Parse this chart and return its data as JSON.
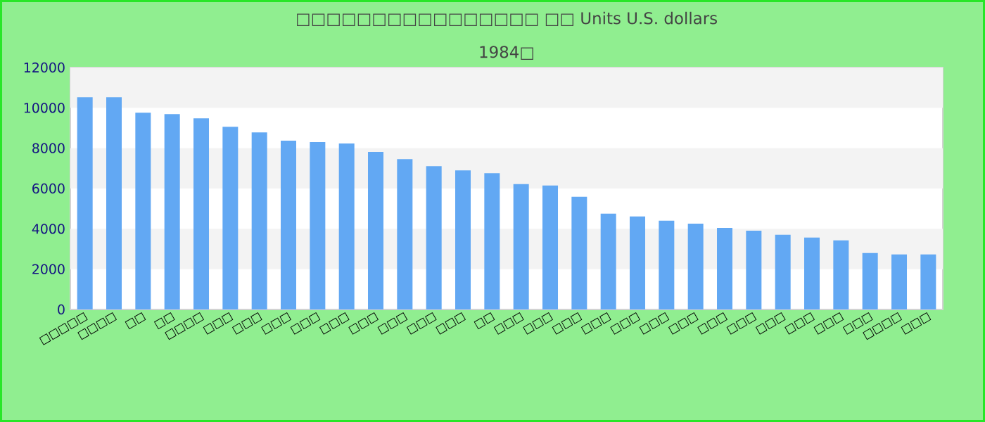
{
  "chart_data": {
    "type": "bar",
    "title": "□□□□□□□□□□□□□□□□ □□ Units U.S. dollars",
    "subtitle": "1984□",
    "categories": [
      "□□□□□",
      "□□□□",
      "□□",
      "□□",
      "□□□□",
      "□□□",
      "□□□",
      "□□□",
      "□□□",
      "□□□",
      "□□□",
      "□□□",
      "□□□",
      "□□□",
      "□□",
      "□□□",
      "□□□",
      "□□□",
      "□□□",
      "□□□",
      "□□□",
      "□□□",
      "□□□",
      "□□□",
      "□□□",
      "□□□",
      "□□□",
      "□□□",
      "□□□□",
      "□□□"
    ],
    "values": [
      10530,
      10530,
      9760,
      9690,
      9480,
      9060,
      8780,
      8370,
      8300,
      8230,
      7810,
      7460,
      7110,
      6900,
      6760,
      6220,
      6150,
      5590,
      4750,
      4610,
      4400,
      4260,
      4050,
      3910,
      3710,
      3570,
      3430,
      2800,
      2730,
      2730
    ],
    "color": "#62a8f3",
    "ylim": [
      0,
      12000
    ],
    "yticks": [
      0,
      2000,
      4000,
      6000,
      8000,
      10000,
      12000
    ]
  }
}
